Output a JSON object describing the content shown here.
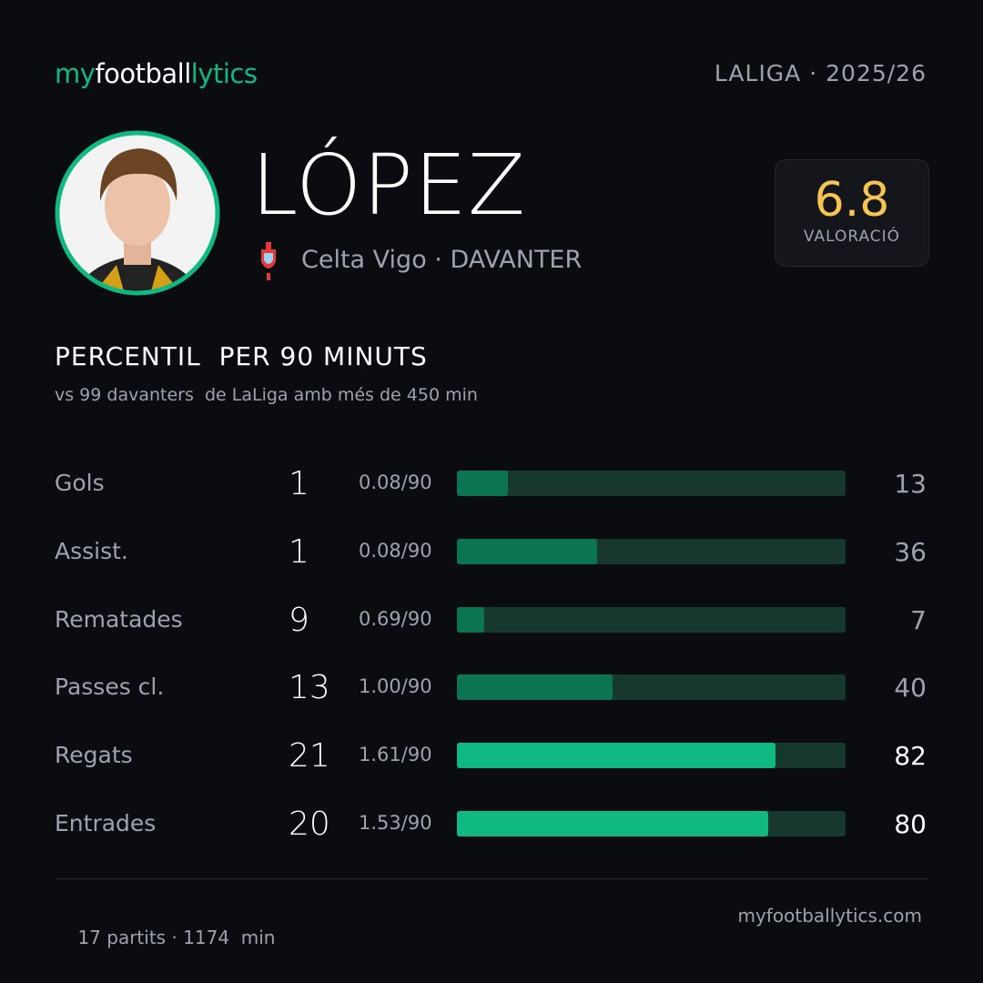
{
  "header": {
    "logo": [
      "my",
      "football",
      "lytics"
    ],
    "league": "LALIGA",
    "season": "2025/26"
  },
  "player": {
    "name": "LÓPEZ",
    "club": "Celta Vigo",
    "position": "DAVANTER",
    "rating": 6.8,
    "rating_label": "VALORACIÓ"
  },
  "section": {
    "title": "PERCENTIL  PER 90 MINUTS",
    "subtitle": "vs 99 davanters  de LaLiga amb més de 450 min"
  },
  "stats": {
    "percentile_range": [
      0,
      100
    ],
    "track_color": "#17382c",
    "rows": [
      {
        "label": "Gols",
        "total": 1,
        "per90": "0.08/90",
        "percentile": 13,
        "bar_color": "#0b7552",
        "value_color": "#9ca3af"
      },
      {
        "label": "Assist.",
        "total": 1,
        "per90": "0.08/90",
        "percentile": 36,
        "bar_color": "#0b7552",
        "value_color": "#9ca3af"
      },
      {
        "label": "Rematades",
        "total": 9,
        "per90": "0.69/90",
        "percentile": 7,
        "bar_color": "#0b7552",
        "value_color": "#9ca3af"
      },
      {
        "label": "Passes cl.",
        "total": 13,
        "per90": "1.00/90",
        "percentile": 40,
        "bar_color": "#0b7552",
        "value_color": "#9ca3af"
      },
      {
        "label": "Regats",
        "total": 21,
        "per90": "1.61/90",
        "percentile": 82,
        "bar_color": "#10b981",
        "value_color": "#ffffff"
      },
      {
        "label": "Entrades",
        "total": 20,
        "per90": "1.53/90",
        "percentile": 80,
        "bar_color": "#10b981",
        "value_color": "#ffffff"
      }
    ]
  },
  "footer": {
    "matches": "17 partits",
    "minutes": "1174  min",
    "site": "myfootballytics.com"
  }
}
